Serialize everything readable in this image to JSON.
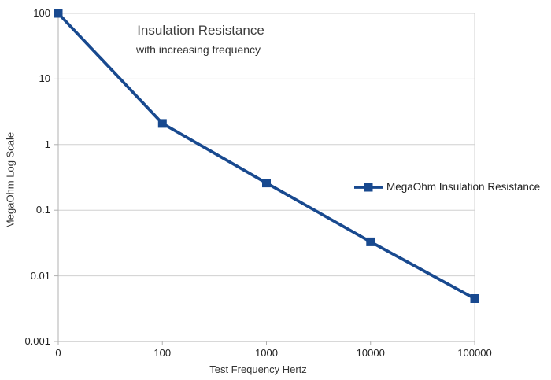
{
  "chart_data": {
    "type": "line",
    "title": "Insulation Resistance",
    "subtitle": "with increasing frequency",
    "xlabel": "Test Frequency Hertz",
    "ylabel": "MegaOhm Log Scale",
    "x_categories": [
      "0",
      "100",
      "1000",
      "10000",
      "100000"
    ],
    "y_ticks": [
      "100",
      "10",
      "1",
      "0.1",
      "0.01",
      "0.001"
    ],
    "y_scale": "log",
    "ylim": [
      0.001,
      100
    ],
    "grid": "horizontal-only",
    "legend_position": "middle-right",
    "series": [
      {
        "name": "MegaOhm Insulation Resistance",
        "color": "#18498f",
        "marker": "square",
        "x": [
          0,
          100,
          1000,
          10000,
          100000
        ],
        "values": [
          100,
          2.1,
          0.26,
          0.033,
          0.0045
        ]
      }
    ]
  },
  "colors": {
    "background": "#ffffff",
    "grid": "#d0d0d0",
    "axis": "#b0b0b0",
    "text": "#222222",
    "title_text": "#3d3d3d"
  }
}
